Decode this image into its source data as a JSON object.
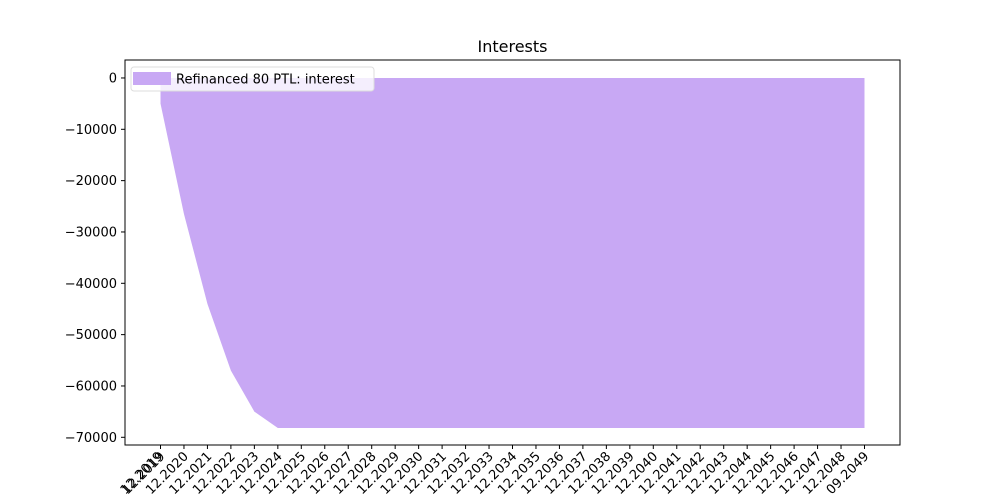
{
  "chart_data": {
    "type": "area",
    "title": "Interests",
    "xlabel": "",
    "ylabel": "",
    "x": [
      "12.2019",
      "12.2019",
      "12.2020",
      "12.2021",
      "12.2022",
      "12.2023",
      "12.2024",
      "12.2025",
      "12.2026",
      "12.2027",
      "12.2028",
      "12.2029",
      "12.2030",
      "12.2031",
      "12.2032",
      "12.2033",
      "12.2034",
      "12.2035",
      "12.2036",
      "12.2037",
      "12.2038",
      "12.2039",
      "12.2040",
      "12.2041",
      "12.2042",
      "12.2043",
      "12.2044",
      "12.2045",
      "12.2046",
      "12.2047",
      "12.2048",
      "09.2049"
    ],
    "series": [
      {
        "name": "Refinanced 80 PTL: interest",
        "color": "#c8a8f4",
        "values": [
          -5000,
          -5000,
          -26500,
          -44000,
          -57000,
          -65000,
          -68200,
          -68200,
          -68200,
          -68200,
          -68200,
          -68200,
          -68200,
          -68200,
          -68200,
          -68200,
          -68200,
          -68200,
          -68200,
          -68200,
          -68200,
          -68200,
          -68200,
          -68200,
          -68200,
          -68200,
          -68200,
          -68200,
          -68200,
          -68200,
          -68200,
          -68200
        ]
      }
    ],
    "baseline": 0,
    "ylim": [
      -71500,
      3500
    ],
    "yticks": [
      0,
      -10000,
      -20000,
      -30000,
      -40000,
      -50000,
      -60000,
      -70000
    ],
    "ytick_labels": [
      "0",
      "−10000",
      "−20000",
      "−30000",
      "−40000",
      "−50000",
      "−60000",
      "−70000"
    ],
    "xtick_rotation": 45,
    "grid": false,
    "legend": "upper left"
  }
}
